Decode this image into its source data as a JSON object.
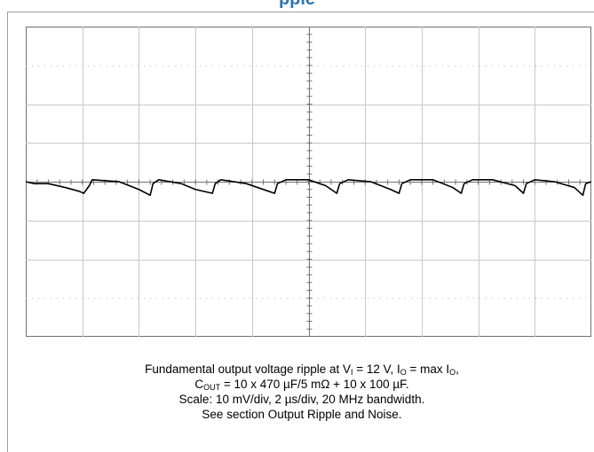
{
  "page": {
    "title_fragment": "pple"
  },
  "chart_data": {
    "type": "line",
    "title": "",
    "xlabel": "",
    "ylabel": "",
    "grid": true,
    "divisions": {
      "x": 10,
      "y": 8
    },
    "scale": {
      "y_per_div": "10 mV/div",
      "x_per_div": "2 µs/div"
    },
    "xlim": [
      0,
      20
    ],
    "ylim": [
      -40,
      40
    ],
    "x_unit": "µs",
    "y_unit": "mV",
    "series": [
      {
        "x": [
          0,
          0.3,
          0.8,
          1.4,
          1.9,
          2.05,
          2.25,
          2.35,
          3.3,
          4.0,
          4.4,
          4.5,
          4.7,
          5.5,
          6.0,
          6.6,
          6.7,
          6.9,
          7.8,
          8.6,
          8.8,
          8.9,
          9.2,
          10.0,
          10.6,
          11.0,
          11.1,
          11.4,
          12.2,
          12.9,
          13.2,
          13.3,
          13.6,
          14.4,
          15.1,
          15.4,
          15.5,
          15.8,
          16.5,
          17.3,
          17.6,
          17.7,
          18.0,
          18.7,
          19.4,
          19.7,
          19.8,
          20.0
        ],
        "y": [
          0,
          -0.5,
          -0.5,
          -1.5,
          -2.5,
          -3,
          -1,
          0.5,
          0,
          -2,
          -3.5,
          -0.5,
          0.5,
          -0.5,
          -2,
          -3,
          -0.5,
          0.5,
          -0.5,
          -2.5,
          -3,
          -0.5,
          0.5,
          0.5,
          -1,
          -3,
          -0.5,
          0.5,
          0,
          -2,
          -3,
          -0.5,
          0.5,
          0.5,
          -1.5,
          -3,
          -0.5,
          0.5,
          0.5,
          -1,
          -3,
          -0.5,
          0.5,
          0,
          -1.5,
          -3.5,
          -0.5,
          0
        ]
      }
    ]
  },
  "caption": {
    "line1_a": "Fundamental output voltage ripple at V",
    "line1_sub1": "I",
    "line1_b": " = 12 V, I",
    "line1_sub2": "O",
    "line1_c": " = max I",
    "line1_sub3": "O",
    "line1_d": ",",
    "line2_a": "C",
    "line2_sub": "OUT",
    "line2_b": " = 10 x 470 µF/5 mΩ + 10 x 100 µF.",
    "line3": "Scale: 10 mV/div, 2 µs/div, 20 MHz bandwidth.",
    "line4": "See section Output Ripple and Noise."
  },
  "colors": {
    "trace": "#000000",
    "grid": "#c8c8c8",
    "dotted_grid": "#bfbfbf",
    "axis": "#707070",
    "title": "#2e75b6"
  }
}
